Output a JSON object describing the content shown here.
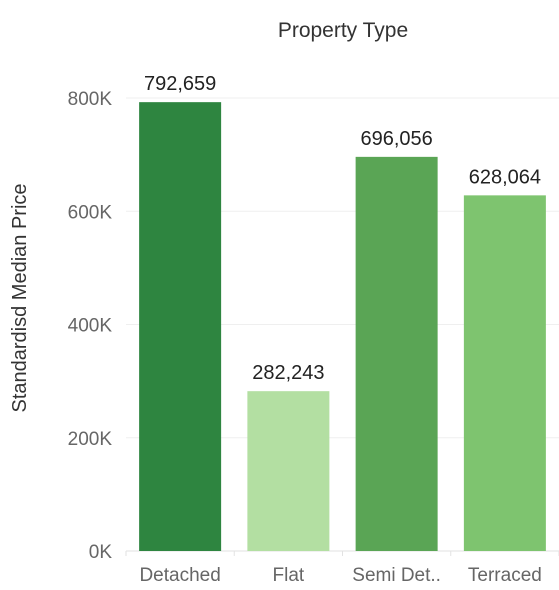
{
  "chart_data": {
    "type": "bar",
    "title": "Property Type",
    "xlabel": "",
    "ylabel": "Standardisd Median Price",
    "categories": [
      "Detached",
      "Flat",
      "Semi Det..",
      "Terraced"
    ],
    "values": [
      792659,
      282243,
      696056,
      628064
    ],
    "data_labels": [
      "792,659",
      "282,243",
      "696,056",
      "628,064"
    ],
    "colors": [
      "#2e8540",
      "#b3dfa2",
      "#5aa555",
      "#7ec46f"
    ],
    "yticks": [
      0,
      200000,
      400000,
      600000,
      800000
    ],
    "ytick_labels": [
      "0K",
      "200K",
      "400K",
      "600K",
      "800K"
    ],
    "ylim": [
      0,
      880000
    ],
    "grid": true,
    "legend": "none"
  }
}
